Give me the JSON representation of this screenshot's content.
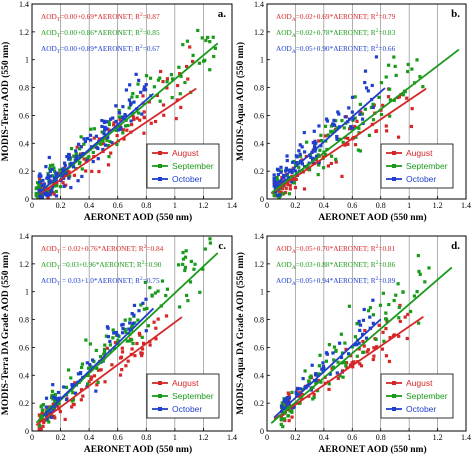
{
  "chart_data": [
    {
      "type": "scatter",
      "panel_label": "a.",
      "xlabel": "AERONET AOD (550 nm)",
      "ylabel": "MODIS-Terra AOD (550 nm)",
      "xlim": [
        0,
        1.4
      ],
      "ylim": [
        0,
        1.4
      ],
      "xticks": [
        "0",
        "0.2",
        "0.4",
        "0.6",
        "0.8",
        "1",
        "1.2",
        "1.4"
      ],
      "yticks": [
        "0",
        "0.2",
        "0.4",
        "0.6",
        "0.8",
        "1",
        "1.2",
        "1.4"
      ],
      "grid": "vertical",
      "legend_position": "center-right",
      "equations": [
        {
          "text": "AOD",
          "sub": "T",
          "rest": "=0.00+0.69*AERONET; R",
          "sup": "2",
          "tail": "=0.87",
          "color": "#d62728"
        },
        {
          "text": "AOD",
          "sub": "T",
          "rest": "=0.00+0.86*AERONET; R",
          "sup": "2",
          "tail": "=0.85",
          "color": "#1a9a1a"
        },
        {
          "text": "AOD",
          "sub": "T",
          "rest": "=0.00+0.89*AERONET; R",
          "sup": "2",
          "tail": "=0.67",
          "color": "#1f3fcc"
        }
      ],
      "series": [
        {
          "name": "August",
          "color": "#d62728",
          "intercept": 0.0,
          "slope": 0.69,
          "line_x": [
            0.05,
            1.15
          ],
          "x_range": [
            0.05,
            1.15
          ],
          "n": 100,
          "spread": 0.08
        },
        {
          "name": "September",
          "color": "#1a9a1a",
          "intercept": 0.0,
          "slope": 0.86,
          "line_x": [
            0.03,
            1.3
          ],
          "x_range": [
            0.03,
            1.3
          ],
          "n": 130,
          "spread": 0.09
        },
        {
          "name": "October",
          "color": "#1f3fcc",
          "intercept": 0.0,
          "slope": 0.89,
          "line_x": [
            0.05,
            0.85
          ],
          "x_range": [
            0.05,
            0.8
          ],
          "n": 140,
          "spread": 0.1
        }
      ]
    },
    {
      "type": "scatter",
      "panel_label": "b.",
      "xlabel": "AERONET AOD (550 nm)",
      "ylabel": "MODIS-Aqua AOD (550 nm)",
      "xlim": [
        0,
        1.4
      ],
      "ylim": [
        0,
        1.4
      ],
      "xticks": [
        "0",
        "0.2",
        "0.4",
        "0.6",
        "0.8",
        "1",
        "1.2",
        "1.4"
      ],
      "yticks": [
        "0",
        "0.2",
        "0.4",
        "0.6",
        "0.8",
        "1",
        "1.2",
        "1.4"
      ],
      "grid": "vertical",
      "legend_position": "center-right",
      "equations": [
        {
          "text": "AOD",
          "sub": "A",
          "rest": "=0.02+0.69*AERONET; R",
          "sup": "2",
          "tail": "=0.79",
          "color": "#d62728"
        },
        {
          "text": "AOD",
          "sub": "A",
          "rest": "=0.02+0.78*AERONET; R",
          "sup": "2",
          "tail": "=0.83",
          "color": "#1a9a1a"
        },
        {
          "text": "AOD",
          "sub": "A",
          "rest": "=0.05+0.90*AERONET; R",
          "sup": "2",
          "tail": "=0.66",
          "color": "#1f3fcc"
        }
      ],
      "series": [
        {
          "name": "August",
          "color": "#d62728",
          "intercept": 0.02,
          "slope": 0.69,
          "line_x": [
            0.03,
            1.12
          ],
          "x_range": [
            0.05,
            1.05
          ],
          "n": 90,
          "spread": 0.08
        },
        {
          "name": "September",
          "color": "#1a9a1a",
          "intercept": 0.02,
          "slope": 0.78,
          "line_x": [
            0.03,
            1.35
          ],
          "x_range": [
            0.05,
            1.1
          ],
          "n": 110,
          "spread": 0.09
        },
        {
          "name": "October",
          "color": "#1f3fcc",
          "intercept": 0.05,
          "slope": 0.9,
          "line_x": [
            0.05,
            0.83
          ],
          "x_range": [
            0.05,
            0.8
          ],
          "n": 110,
          "spread": 0.09
        }
      ]
    },
    {
      "type": "scatter",
      "panel_label": "c.",
      "xlabel": "AERONET AOD (550 nm)",
      "ylabel": "MODIS-Terra DA Grade AOD (550 nm)",
      "xlim": [
        0,
        1.4
      ],
      "ylim": [
        0,
        1.4
      ],
      "xticks": [
        "0",
        "0.2",
        "0.4",
        "0.6",
        "0.8",
        "1",
        "1.2",
        "1.4"
      ],
      "yticks": [
        "0",
        "0.2",
        "0.4",
        "0.6",
        "0.8",
        "1",
        "1.2",
        "1.4"
      ],
      "grid": "vertical",
      "legend_position": "bottom-right",
      "equations": [
        {
          "text": "AOD",
          "sub": "T",
          "rest": " = 0.02+0.76*AERONET; R",
          "sup": "2",
          "tail": "=0.84",
          "color": "#d62728"
        },
        {
          "text": "AOD",
          "sub": "T",
          "rest": " =0.03+0.96*AERONET; R",
          "sup": "2",
          "tail": "=0.90",
          "color": "#1a9a1a"
        },
        {
          "text": "AOD",
          "sub": "T",
          "rest": " = 0.03+1.0*AERONET; R",
          "sup": "2",
          "tail": "=0.75",
          "color": "#1f3fcc"
        }
      ],
      "series": [
        {
          "name": "August",
          "color": "#d62728",
          "intercept": 0.02,
          "slope": 0.76,
          "line_x": [
            0.03,
            1.05
          ],
          "x_range": [
            0.05,
            0.95
          ],
          "n": 90,
          "spread": 0.07
        },
        {
          "name": "September",
          "color": "#1a9a1a",
          "intercept": 0.03,
          "slope": 0.96,
          "line_x": [
            0.03,
            1.3
          ],
          "x_range": [
            0.05,
            1.25
          ],
          "n": 120,
          "spread": 0.08
        },
        {
          "name": "October",
          "color": "#1f3fcc",
          "intercept": 0.03,
          "slope": 1.0,
          "line_x": [
            0.08,
            0.85
          ],
          "x_range": [
            0.1,
            0.8
          ],
          "n": 60,
          "spread": 0.08
        }
      ]
    },
    {
      "type": "scatter",
      "panel_label": "d.",
      "xlabel": "AERONET AOD (550 nm)",
      "ylabel": "MODIS-Aqua DA Grade AOD (550 nm)",
      "xlim": [
        0,
        1.4
      ],
      "ylim": [
        0,
        1.4
      ],
      "xticks": [
        "0",
        "0.2",
        "0.4",
        "0.6",
        "0.8",
        "1",
        "1.2",
        "1.4"
      ],
      "yticks": [
        "0",
        "0.2",
        "0.4",
        "0.6",
        "0.8",
        "1",
        "1.2",
        "1.4"
      ],
      "grid": "vertical",
      "legend_position": "bottom-right",
      "equations": [
        {
          "text": "AOD",
          "sub": "A",
          "rest": "=0.05+0.70*AERONET; R",
          "sup": "2",
          "tail": "=0.81",
          "color": "#d62728"
        },
        {
          "text": "AOD",
          "sub": "A",
          "rest": "=0.03+0.88*AERONET; R",
          "sup": "2",
          "tail": "=0.86",
          "color": "#1a9a1a"
        },
        {
          "text": "AOD",
          "sub": "A",
          "rest": "=0.05+0.94*AERONET; R",
          "sup": "2",
          "tail": "=0.89",
          "color": "#1f3fcc"
        }
      ],
      "series": [
        {
          "name": "August",
          "color": "#d62728",
          "intercept": 0.05,
          "slope": 0.7,
          "line_x": [
            0.05,
            1.1
          ],
          "x_range": [
            0.1,
            1.0
          ],
          "n": 80,
          "spread": 0.07
        },
        {
          "name": "September",
          "color": "#1a9a1a",
          "intercept": 0.03,
          "slope": 0.88,
          "line_x": [
            0.03,
            1.3
          ],
          "x_range": [
            0.1,
            1.15
          ],
          "n": 100,
          "spread": 0.08
        },
        {
          "name": "October",
          "color": "#1f3fcc",
          "intercept": 0.05,
          "slope": 0.94,
          "line_x": [
            0.05,
            0.8
          ],
          "x_range": [
            0.1,
            0.75
          ],
          "n": 60,
          "spread": 0.07
        }
      ]
    }
  ]
}
